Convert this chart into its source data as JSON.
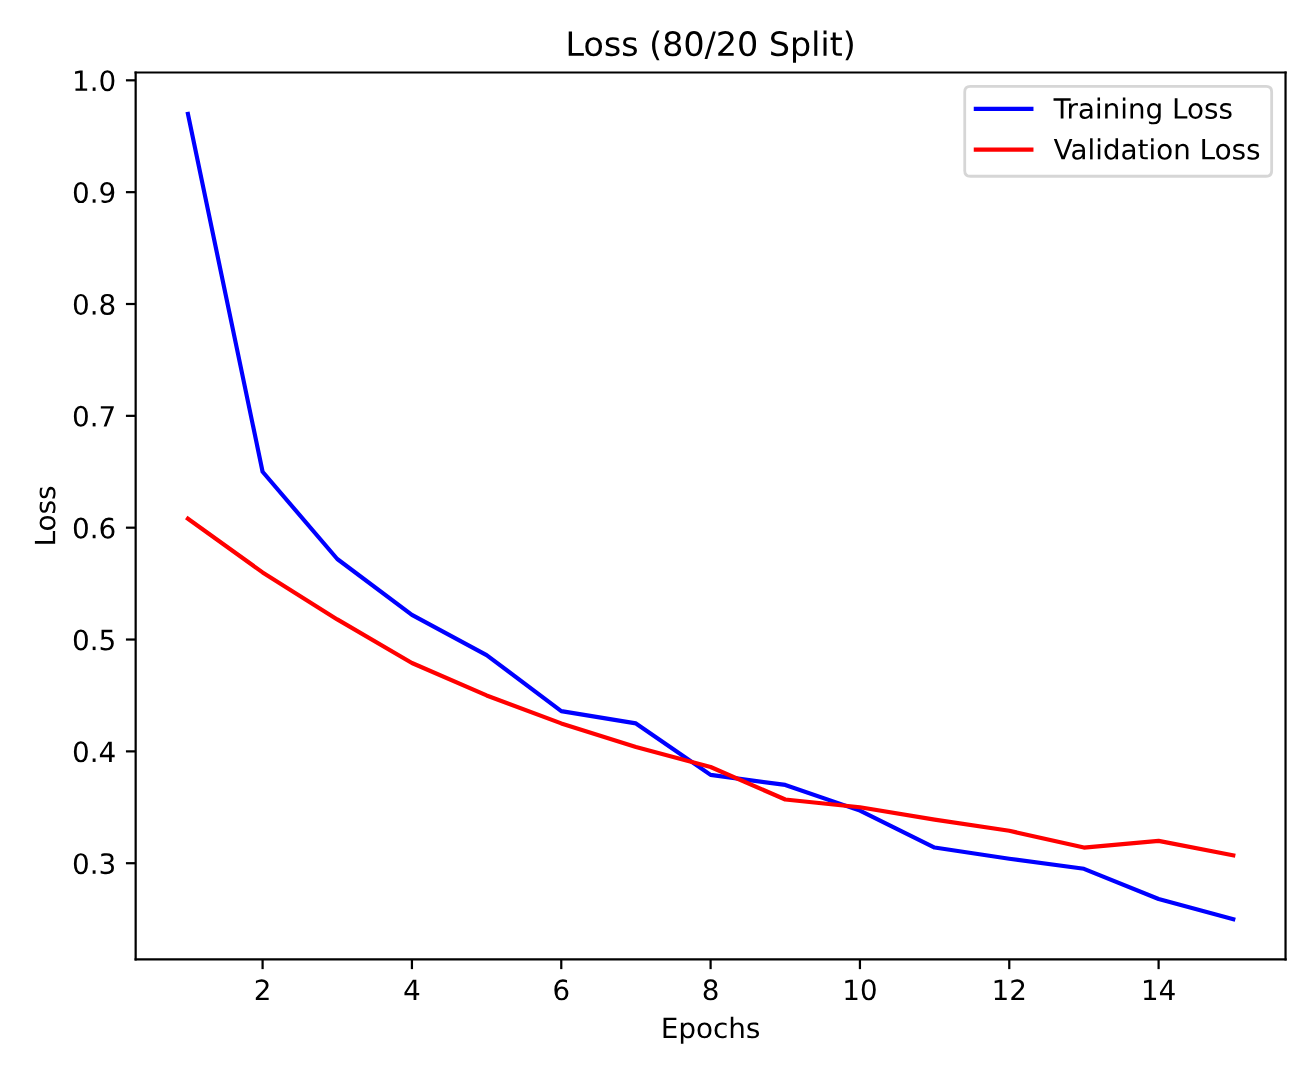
{
  "chart_data": {
    "type": "line",
    "title": "Loss (80/20 Split)",
    "xlabel": "Epochs",
    "ylabel": "Loss",
    "x": [
      1,
      2,
      3,
      4,
      5,
      6,
      7,
      8,
      9,
      10,
      11,
      12,
      13,
      14,
      15
    ],
    "series": [
      {
        "name": "Training Loss",
        "color": "#0000ff",
        "values": [
          0.97,
          0.65,
          0.572,
          0.522,
          0.486,
          0.436,
          0.425,
          0.379,
          0.37,
          0.347,
          0.314,
          0.304,
          0.295,
          0.268,
          0.25
        ]
      },
      {
        "name": "Validation Loss",
        "color": "#ff0000",
        "values": [
          0.608,
          0.56,
          0.518,
          0.479,
          0.45,
          0.425,
          0.404,
          0.386,
          0.357,
          0.35,
          0.339,
          0.329,
          0.314,
          0.32,
          0.307
        ]
      }
    ],
    "xlim": [
      0.3,
      15.7
    ],
    "ylim": [
      0.214,
      1.007
    ],
    "xticks": [
      2,
      4,
      6,
      8,
      10,
      12,
      14
    ],
    "yticks": [
      0.3,
      0.4,
      0.5,
      0.6,
      0.7,
      0.8,
      0.9,
      {
        "value": 1.0,
        "label": "1.0"
      }
    ],
    "legend": "top right",
    "grid": false,
    "line_style": "solid"
  }
}
